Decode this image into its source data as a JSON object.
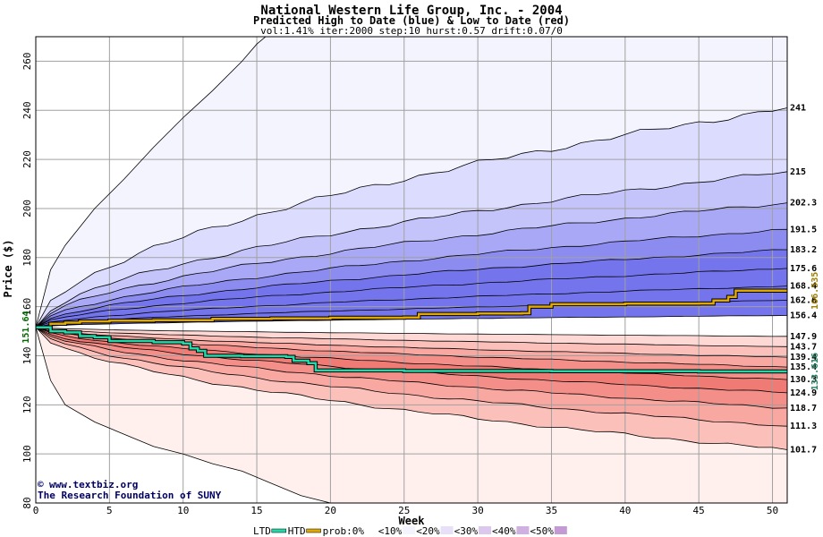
{
  "chart_data": {
    "type": "area",
    "title": "National Western Life Group, Inc. - 2004",
    "subtitle": "Predicted High to Date (blue) &  Low to Date (red)",
    "params": "vol:1.41% iter:2000 step:10 hurst:0.57 drift:0.07/0",
    "xlabel": "Week",
    "ylabel": "Price ($)",
    "xlim": [
      0,
      51
    ],
    "ylim": [
      80,
      270
    ],
    "xticks": [
      0,
      5,
      10,
      15,
      20,
      25,
      30,
      35,
      40,
      45,
      50
    ],
    "yticks": [
      80,
      100,
      120,
      140,
      160,
      180,
      200,
      220,
      240,
      260
    ],
    "start_value": 151.64,
    "start_label": "151.64",
    "high_quantiles": [
      {
        "label": "241",
        "end": 241
      },
      {
        "label": "215",
        "end": 215
      },
      {
        "label": "202.3",
        "end": 202.3
      },
      {
        "label": "191.5",
        "end": 191.5
      },
      {
        "label": "183.2",
        "end": 183.2
      },
      {
        "label": "175.6",
        "end": 175.6
      },
      {
        "label": "168.4",
        "end": 168.4
      },
      {
        "label": "162.6",
        "end": 162.6
      },
      {
        "label": "156.4",
        "end": 156.4
      }
    ],
    "low_quantiles": [
      {
        "label": "147.9",
        "end": 147.9
      },
      {
        "label": "143.7",
        "end": 143.7
      },
      {
        "label": "139.4",
        "end": 139.4
      },
      {
        "label": "135.4",
        "end": 135.4
      },
      {
        "label": "130.3",
        "end": 130.3
      },
      {
        "label": "124.9",
        "end": 124.9
      },
      {
        "label": "118.7",
        "end": 118.7
      },
      {
        "label": "111.3",
        "end": 111.3
      },
      {
        "label": "101.7",
        "end": 101.7
      }
    ],
    "htd_series": {
      "name": "HTD",
      "end_label": "166.535",
      "points": [
        [
          0,
          151.6
        ],
        [
          1,
          153
        ],
        [
          2,
          153.5
        ],
        [
          3,
          154
        ],
        [
          5,
          154.3
        ],
        [
          8,
          154.5
        ],
        [
          12,
          155
        ],
        [
          16,
          155.2
        ],
        [
          20,
          155.5
        ],
        [
          25,
          155.6
        ],
        [
          26,
          157
        ],
        [
          30,
          157.2
        ],
        [
          33,
          157.3
        ],
        [
          33.5,
          160
        ],
        [
          35,
          161
        ],
        [
          40,
          161.2
        ],
        [
          45,
          161.3
        ],
        [
          46,
          162.5
        ],
        [
          47,
          164
        ],
        [
          47.5,
          166.5
        ],
        [
          51,
          166.5
        ]
      ]
    },
    "ltd_series": {
      "name": "LTD",
      "end_label": "133.616",
      "points": [
        [
          0,
          151.6
        ],
        [
          1,
          150
        ],
        [
          2,
          149.5
        ],
        [
          3,
          148
        ],
        [
          4,
          147.5
        ],
        [
          5,
          146
        ],
        [
          8,
          145.5
        ],
        [
          10,
          145
        ],
        [
          10.5,
          143
        ],
        [
          11,
          142
        ],
        [
          11.5,
          140
        ],
        [
          14,
          139.8
        ],
        [
          17,
          139.5
        ],
        [
          17.5,
          138
        ],
        [
          18.5,
          137
        ],
        [
          19,
          134
        ],
        [
          25,
          133.8
        ],
        [
          35,
          133.7
        ],
        [
          45,
          133.6
        ],
        [
          51,
          133.6
        ]
      ]
    },
    "outer_envelope": {
      "upper": [
        [
          0,
          151.6
        ],
        [
          1,
          175
        ],
        [
          2,
          185
        ],
        [
          4,
          200
        ],
        [
          6,
          212
        ],
        [
          8,
          225
        ],
        [
          10,
          237
        ],
        [
          12,
          248
        ],
        [
          14,
          260
        ],
        [
          15,
          267
        ],
        [
          16,
          272
        ]
      ],
      "lower": [
        [
          0,
          151.6
        ],
        [
          1,
          130
        ],
        [
          2,
          120
        ],
        [
          4,
          113
        ],
        [
          6,
          108
        ],
        [
          8,
          103
        ],
        [
          10,
          100
        ],
        [
          12,
          96
        ],
        [
          14,
          93
        ],
        [
          16,
          88
        ],
        [
          18,
          83
        ],
        [
          20,
          80
        ]
      ]
    },
    "band_colors": {
      "blue": [
        "#f4f4ff",
        "#dcdcff",
        "#c4c4fb",
        "#a8a8f6",
        "#8c8cf0",
        "#7474ec"
      ],
      "red": [
        "#fff0ee",
        "#fdd8d4",
        "#fbc0ba",
        "#f8a7a1",
        "#f48e88",
        "#f07a74"
      ],
      "htd": "#e0a800",
      "ltd": "#20d8a8",
      "htd_label": "#a08000",
      "ltd_label": "#208060"
    },
    "legend": {
      "items": [
        "LTD",
        "HTD",
        "prob:0%",
        "<10%",
        "<20%",
        "<30%",
        "<40%",
        "<50%"
      ]
    },
    "grid": true
  },
  "credits": {
    "site": "www.textbiz.org",
    "org": "The Research Foundation of SUNY"
  }
}
